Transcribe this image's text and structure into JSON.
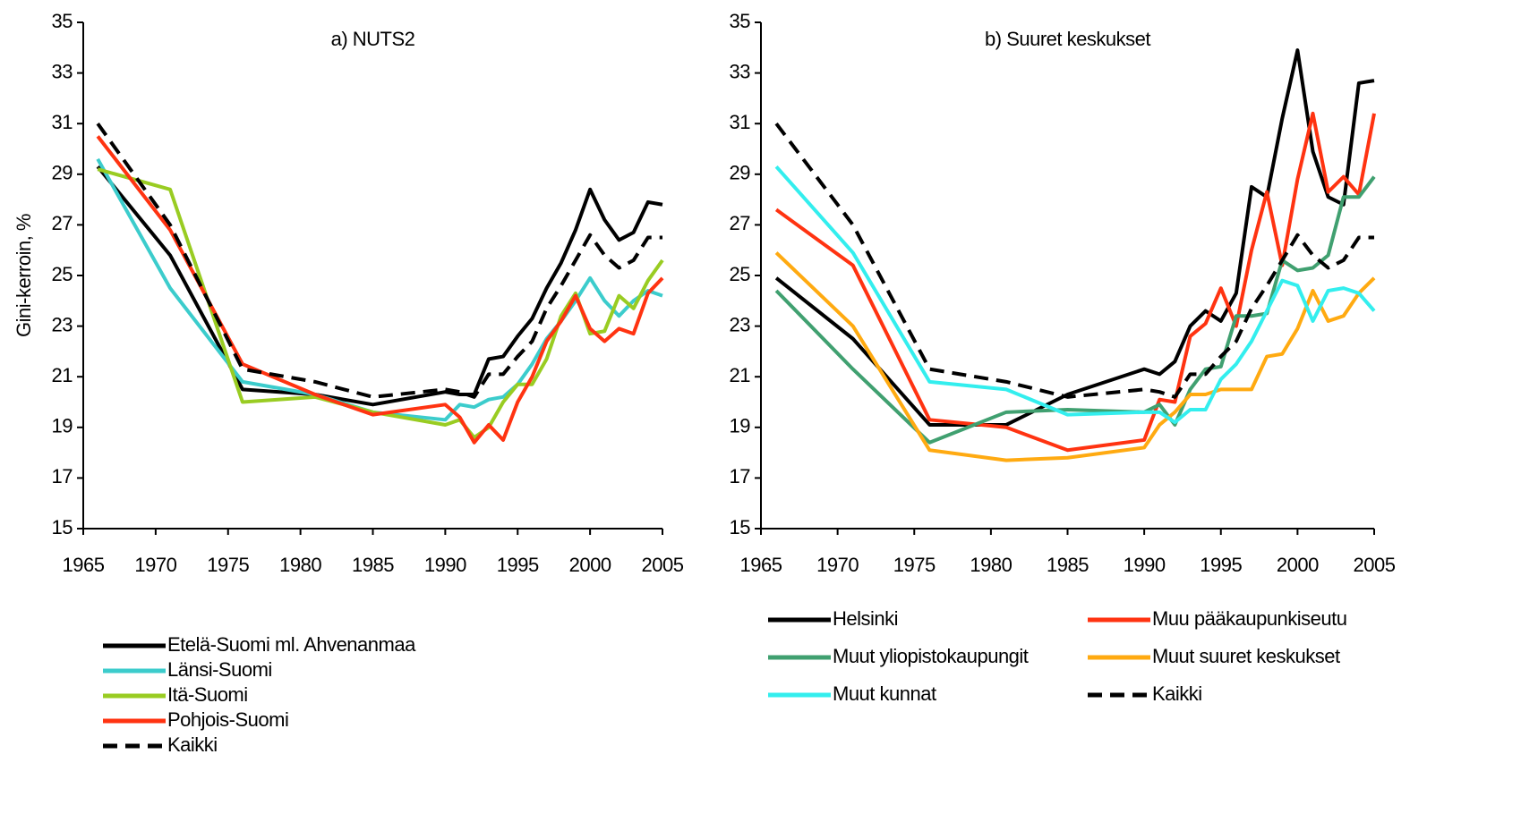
{
  "chart_data": [
    {
      "type": "line",
      "title": "a) NUTS2",
      "ylabel": "Gini-kerroin, %",
      "x": [
        1966,
        1971,
        1976,
        1981,
        1985,
        1990,
        1991,
        1992,
        1993,
        1994,
        1995,
        1996,
        1997,
        1998,
        1999,
        2000,
        2001,
        2002,
        2003,
        2004,
        2005
      ],
      "xlim": [
        1965,
        2005
      ],
      "xticks": [
        1965,
        1970,
        1975,
        1980,
        1985,
        1990,
        1995,
        2000,
        2005
      ],
      "ylim": [
        15,
        35
      ],
      "yticks": [
        15,
        17,
        19,
        21,
        23,
        25,
        27,
        29,
        31,
        33,
        35
      ],
      "legend_columns": 1,
      "series": [
        {
          "name": "Etelä-Suomi ml. Ahvenanmaa",
          "color": "#000000",
          "line_style": "solid",
          "values": [
            29.3,
            25.8,
            20.5,
            20.3,
            19.9,
            20.4,
            20.3,
            20.3,
            21.7,
            21.8,
            22.6,
            23.3,
            24.5,
            25.5,
            26.8,
            28.4,
            27.2,
            26.4,
            26.7,
            27.9,
            27.8
          ]
        },
        {
          "name": "Länsi-Suomi",
          "color": "#3ccccc",
          "line_style": "solid",
          "values": [
            29.6,
            24.5,
            20.8,
            20.3,
            19.6,
            19.3,
            19.9,
            19.8,
            20.1,
            20.2,
            20.7,
            21.5,
            22.5,
            23.2,
            24.0,
            24.9,
            24.0,
            23.4,
            24.0,
            24.4,
            24.2
          ]
        },
        {
          "name": "Itä-Suomi",
          "color": "#99cc22",
          "line_style": "solid",
          "values": [
            29.2,
            28.4,
            20.0,
            20.2,
            19.6,
            19.1,
            19.3,
            18.6,
            19.0,
            20.0,
            20.7,
            20.7,
            21.7,
            23.4,
            24.3,
            22.7,
            22.8,
            24.2,
            23.7,
            24.8,
            25.6
          ]
        },
        {
          "name": "Pohjois-Suomi",
          "color": "#ff3311",
          "line_style": "solid",
          "values": [
            30.5,
            26.8,
            21.5,
            20.3,
            19.5,
            19.9,
            19.4,
            18.4,
            19.1,
            18.5,
            20.0,
            21.0,
            22.4,
            23.2,
            24.2,
            22.9,
            22.4,
            22.9,
            22.7,
            24.3,
            24.9
          ]
        },
        {
          "name": "Kaikki",
          "color": "#000000",
          "line_style": "dashed",
          "values": [
            31.0,
            27.0,
            21.3,
            20.8,
            20.2,
            20.5,
            20.4,
            20.2,
            21.1,
            21.1,
            21.8,
            22.4,
            23.7,
            24.6,
            25.6,
            26.6,
            25.8,
            25.3,
            25.6,
            26.5,
            26.5
          ]
        }
      ]
    },
    {
      "type": "line",
      "title": "b) Suuret keskukset",
      "x": [
        1966,
        1971,
        1976,
        1981,
        1985,
        1990,
        1991,
        1992,
        1993,
        1994,
        1995,
        1996,
        1997,
        1998,
        1999,
        2000,
        2001,
        2002,
        2003,
        2004,
        2005
      ],
      "xlim": [
        1965,
        2005
      ],
      "xticks": [
        1965,
        1970,
        1975,
        1980,
        1985,
        1990,
        1995,
        2000,
        2005
      ],
      "ylim": [
        15,
        35
      ],
      "yticks": [
        15,
        17,
        19,
        21,
        23,
        25,
        27,
        29,
        31,
        33,
        35
      ],
      "legend_columns": 2,
      "series": [
        {
          "name": "Helsinki",
          "color": "#000000",
          "line_style": "solid",
          "values": [
            24.9,
            22.5,
            19.1,
            19.1,
            20.3,
            21.3,
            21.1,
            21.6,
            23.0,
            23.6,
            23.2,
            24.3,
            28.5,
            28.1,
            31.2,
            33.9,
            29.9,
            28.1,
            27.8,
            32.6,
            32.7
          ]
        },
        {
          "name": "Muu pääkaupunkiseutu",
          "color": "#ff3311",
          "line_style": "solid",
          "values": [
            27.6,
            25.4,
            19.3,
            19.0,
            18.1,
            18.5,
            20.1,
            20.0,
            22.6,
            23.1,
            24.5,
            23.0,
            26.0,
            28.3,
            25.4,
            28.8,
            31.4,
            28.3,
            28.9,
            28.2,
            31.4
          ]
        },
        {
          "name": "Muut yliopistokaupungit",
          "color": "#40a070",
          "line_style": "solid",
          "values": [
            24.4,
            21.3,
            18.4,
            19.6,
            19.7,
            19.6,
            19.9,
            19.1,
            20.5,
            21.3,
            21.4,
            23.4,
            23.4,
            23.5,
            25.6,
            25.2,
            25.3,
            25.8,
            28.1,
            28.1,
            28.9
          ]
        },
        {
          "name": "Muut suuret keskukset",
          "color": "#ffaa11",
          "line_style": "solid",
          "values": [
            25.9,
            23.0,
            18.1,
            17.7,
            17.8,
            18.2,
            19.1,
            19.6,
            20.3,
            20.3,
            20.5,
            20.5,
            20.5,
            21.8,
            21.9,
            22.9,
            24.4,
            23.2,
            23.4,
            24.3,
            24.9
          ]
        },
        {
          "name": "Muut kunnat",
          "color": "#33eeee",
          "line_style": "solid",
          "values": [
            29.3,
            25.9,
            20.8,
            20.5,
            19.5,
            19.6,
            19.6,
            19.2,
            19.7,
            19.7,
            20.9,
            21.5,
            22.4,
            23.6,
            24.8,
            24.6,
            23.2,
            24.4,
            24.5,
            24.3,
            23.6
          ]
        },
        {
          "name": "Kaikki",
          "color": "#000000",
          "line_style": "dashed",
          "values": [
            31.0,
            27.0,
            21.3,
            20.8,
            20.2,
            20.5,
            20.4,
            20.2,
            21.1,
            21.1,
            21.8,
            22.4,
            23.7,
            24.6,
            25.6,
            26.6,
            25.8,
            25.3,
            25.6,
            26.5,
            26.5
          ]
        }
      ]
    }
  ]
}
